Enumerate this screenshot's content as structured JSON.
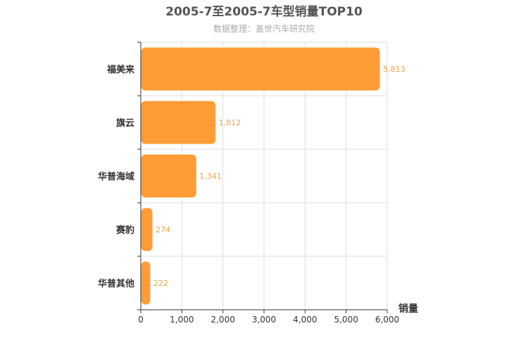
{
  "chart_data": {
    "type": "bar",
    "orientation": "horizontal",
    "title": "2005-7至2005-7车型销量TOP10",
    "subtitle": "数据整理：盖世汽车研究院",
    "xlabel": "销量",
    "ylabel": "",
    "categories": [
      "福美来",
      "旗云",
      "华普海域",
      "赛豹",
      "华普其他"
    ],
    "values": [
      5813,
      1812,
      1341,
      274,
      222
    ],
    "value_labels": [
      "5,813",
      "1,812",
      "1,341",
      "274",
      "222"
    ],
    "xlim": [
      0,
      6000
    ],
    "xticks": [
      0,
      1000,
      2000,
      3000,
      4000,
      5000,
      6000
    ],
    "xtick_labels": [
      "0",
      "1,000",
      "2,000",
      "3,000",
      "4,000",
      "5,000",
      "6,000"
    ],
    "grid": true,
    "legend": "none",
    "colors": {
      "bar": "#ff9c36",
      "value_label": "#f0a040",
      "title": "#555555",
      "subtitle": "#aaaaaa",
      "axis": "#333333",
      "grid": "#dddddd"
    }
  }
}
